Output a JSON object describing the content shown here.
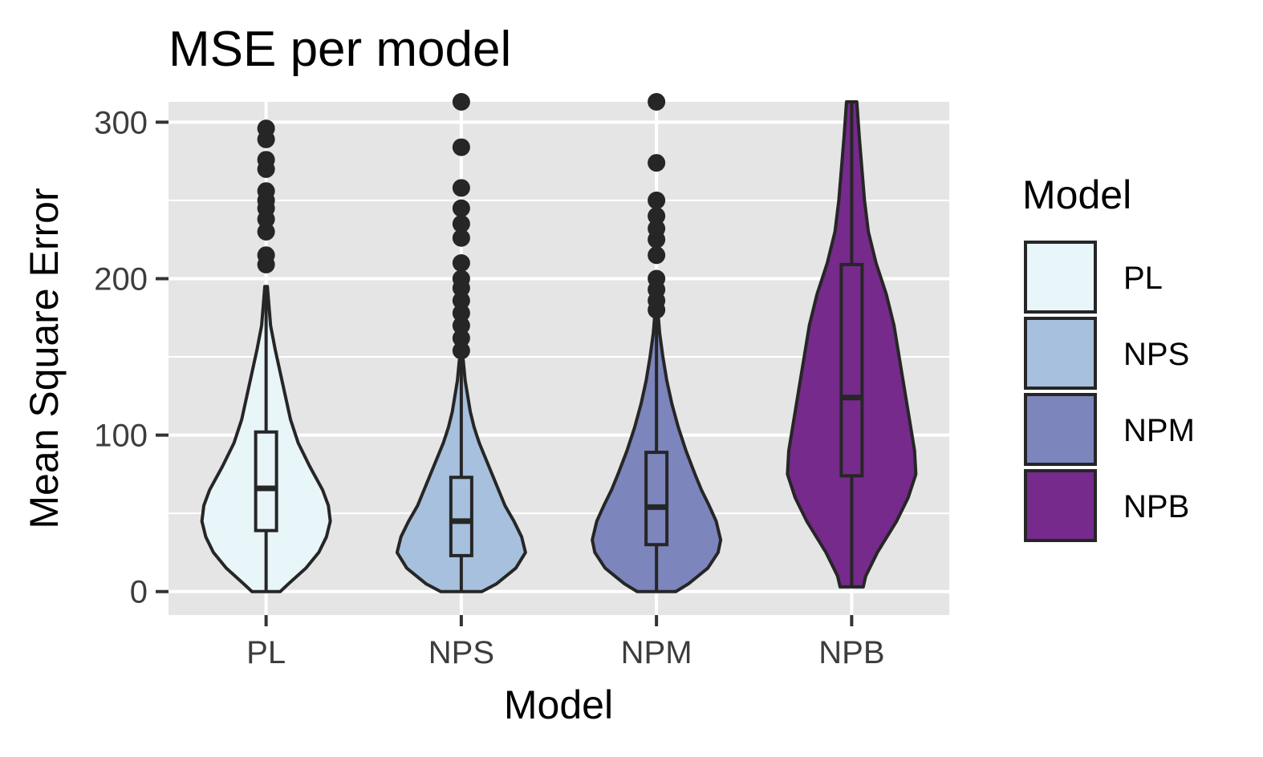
{
  "chart_data": {
    "type": "violin",
    "title": "MSE per model",
    "xlabel": "Model",
    "ylabel": "Mean Square Error",
    "ylim": [
      -15,
      313
    ],
    "y_ticks": [
      0,
      100,
      200,
      300
    ],
    "y_tick_labels": [
      "0",
      "100",
      "200",
      "300"
    ],
    "grid": true,
    "legend": {
      "title": "Model",
      "position": "right"
    },
    "categories": [
      "PL",
      "NPS",
      "NPM",
      "NPB"
    ],
    "series": [
      {
        "name": "PL",
        "color": "#e8f5f9",
        "box": {
          "q1": 39,
          "median": 66,
          "q3": 102,
          "whisker_low": 0,
          "whisker_high": 195
        },
        "violin_range": [
          0,
          195
        ],
        "violin_profile": [
          [
            0,
            0.22
          ],
          [
            5,
            0.35
          ],
          [
            15,
            0.62
          ],
          [
            25,
            0.82
          ],
          [
            35,
            0.94
          ],
          [
            45,
            1.0
          ],
          [
            55,
            0.97
          ],
          [
            65,
            0.88
          ],
          [
            80,
            0.68
          ],
          [
            95,
            0.5
          ],
          [
            110,
            0.38
          ],
          [
            125,
            0.3
          ],
          [
            140,
            0.22
          ],
          [
            155,
            0.14
          ],
          [
            170,
            0.07
          ],
          [
            185,
            0.04
          ],
          [
            195,
            0.02
          ]
        ],
        "outliers": [
          209,
          215,
          230,
          238,
          245,
          250,
          256,
          270,
          276,
          289,
          296
        ]
      },
      {
        "name": "NPS",
        "color": "#a6c0dd",
        "box": {
          "q1": 23,
          "median": 45,
          "q3": 73,
          "whisker_low": 0,
          "whisker_high": 148
        },
        "violin_range": [
          0,
          148
        ],
        "violin_profile": [
          [
            0,
            0.32
          ],
          [
            5,
            0.55
          ],
          [
            15,
            0.85
          ],
          [
            25,
            1.0
          ],
          [
            35,
            0.94
          ],
          [
            45,
            0.82
          ],
          [
            55,
            0.68
          ],
          [
            65,
            0.58
          ],
          [
            75,
            0.48
          ],
          [
            85,
            0.38
          ],
          [
            95,
            0.28
          ],
          [
            105,
            0.2
          ],
          [
            115,
            0.14
          ],
          [
            125,
            0.1
          ],
          [
            135,
            0.06
          ],
          [
            148,
            0.03
          ]
        ],
        "outliers": [
          154,
          162,
          170,
          178,
          186,
          194,
          200,
          210,
          226,
          235,
          245,
          258,
          284,
          313
        ]
      },
      {
        "name": "NPM",
        "color": "#7c85bc",
        "box": {
          "q1": 30,
          "median": 54,
          "q3": 89,
          "whisker_low": 0,
          "whisker_high": 175
        },
        "violin_range": [
          0,
          175
        ],
        "violin_profile": [
          [
            0,
            0.3
          ],
          [
            5,
            0.5
          ],
          [
            15,
            0.8
          ],
          [
            25,
            0.96
          ],
          [
            33,
            1.0
          ],
          [
            45,
            0.93
          ],
          [
            55,
            0.82
          ],
          [
            65,
            0.7
          ],
          [
            75,
            0.6
          ],
          [
            90,
            0.46
          ],
          [
            105,
            0.34
          ],
          [
            120,
            0.24
          ],
          [
            135,
            0.16
          ],
          [
            150,
            0.1
          ],
          [
            165,
            0.05
          ],
          [
            175,
            0.03
          ]
        ],
        "outliers": [
          180,
          186,
          193,
          200,
          215,
          225,
          232,
          240,
          250,
          274,
          313
        ]
      },
      {
        "name": "NPB",
        "color": "#762a8b",
        "box": {
          "q1": 74,
          "median": 124,
          "q3": 209,
          "whisker_low": 3,
          "whisker_high": 313
        },
        "violin_range": [
          3,
          313
        ],
        "violin_profile": [
          [
            3,
            0.18
          ],
          [
            10,
            0.22
          ],
          [
            25,
            0.4
          ],
          [
            45,
            0.7
          ],
          [
            60,
            0.88
          ],
          [
            75,
            1.0
          ],
          [
            90,
            0.98
          ],
          [
            110,
            0.9
          ],
          [
            130,
            0.82
          ],
          [
            150,
            0.74
          ],
          [
            170,
            0.66
          ],
          [
            190,
            0.54
          ],
          [
            210,
            0.38
          ],
          [
            230,
            0.26
          ],
          [
            250,
            0.2
          ],
          [
            270,
            0.16
          ],
          [
            290,
            0.12
          ],
          [
            313,
            0.08
          ]
        ],
        "outliers": []
      }
    ]
  }
}
